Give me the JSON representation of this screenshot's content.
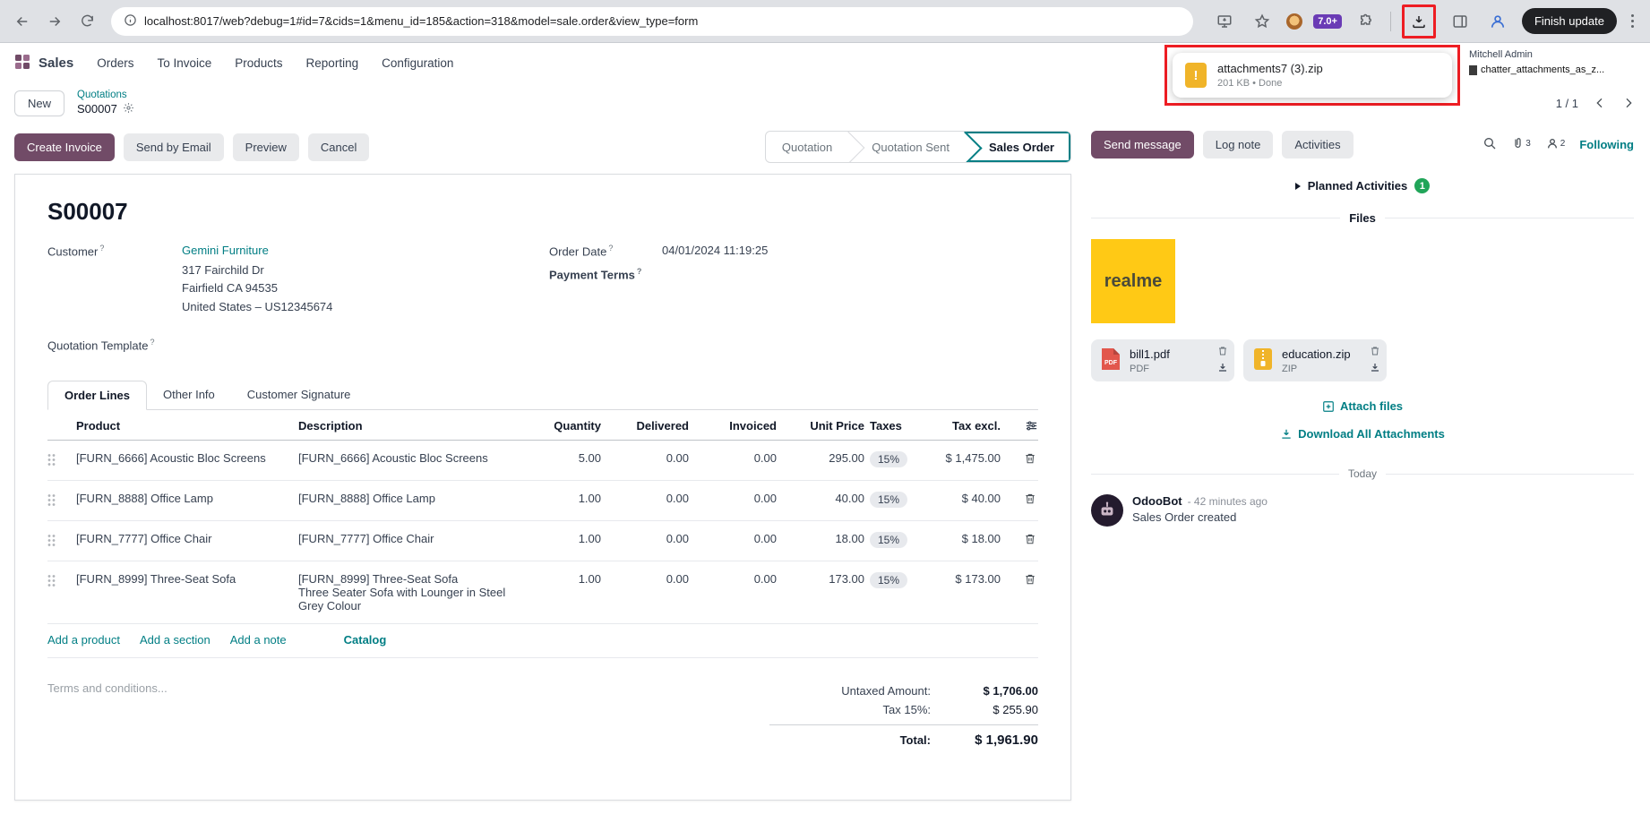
{
  "ui": {
    "help": "?"
  },
  "browser": {
    "url": "localhost:8017/web?debug=1#id=7&cids=1&menu_id=185&action=318&model=sale.order&view_type=form",
    "extension_badge": "7.0+",
    "finish_update_label": "Finish update",
    "download_popup": {
      "filename": "attachments7 (3).zip",
      "meta": "201 KB • Done",
      "warn_glyph": "!"
    }
  },
  "systray": {
    "user": "Mitchell Admin",
    "attachment_file": "chatter_attachments_as_z..."
  },
  "nav": {
    "app": "Sales",
    "items": [
      "Orders",
      "To Invoice",
      "Products",
      "Reporting",
      "Configuration"
    ]
  },
  "breadcrumb": {
    "new_label": "New",
    "parent": "Quotations",
    "current": "S00007",
    "pager": "1 / 1"
  },
  "form": {
    "buttons": [
      "Create Invoice",
      "Send by Email",
      "Preview",
      "Cancel"
    ],
    "statusbar": [
      "Quotation",
      "Quotation Sent",
      "Sales Order"
    ],
    "title": "S00007",
    "fields": {
      "customer_label": "Customer",
      "customer": "Gemini Furniture",
      "address": [
        "317 Fairchild Dr",
        "Fairfield CA 94535",
        "United States – US12345674"
      ],
      "quotation_template_label": "Quotation Template",
      "order_date_label": "Order Date",
      "order_date": "04/01/2024 11:19:25",
      "payment_terms_label": "Payment Terms"
    },
    "tabs": [
      "Order Lines",
      "Other Info",
      "Customer Signature"
    ],
    "table": {
      "headers": [
        "Product",
        "Description",
        "Quantity",
        "Delivered",
        "Invoiced",
        "Unit Price",
        "Taxes",
        "Tax excl."
      ],
      "rows": [
        {
          "product": "[FURN_6666] Acoustic Bloc Screens",
          "description": [
            "[FURN_6666] Acoustic Bloc Screens"
          ],
          "quantity": "5.00",
          "delivered": "0.00",
          "invoiced": "0.00",
          "unit_price": "295.00",
          "taxes": "15%",
          "subtotal": "$ 1,475.00",
          "highlight": false
        },
        {
          "product": "[FURN_8888] Office Lamp",
          "description": [
            "[FURN_8888] Office Lamp"
          ],
          "quantity": "1.00",
          "delivered": "0.00",
          "invoiced": "0.00",
          "unit_price": "40.00",
          "taxes": "15%",
          "subtotal": "$ 40.00",
          "highlight": false
        },
        {
          "product": "[FURN_7777] Office Chair",
          "description": [
            "[FURN_7777] Office Chair"
          ],
          "quantity": "1.00",
          "delivered": "0.00",
          "invoiced": "0.00",
          "unit_price": "18.00",
          "taxes": "15%",
          "subtotal": "$ 18.00",
          "highlight": false
        },
        {
          "product": "[FURN_8999] Three-Seat Sofa",
          "description": [
            "[FURN_8999] Three-Seat Sofa",
            "Three Seater Sofa with Lounger in Steel Grey Colour"
          ],
          "quantity": "1.00",
          "delivered": "0.00",
          "invoiced": "0.00",
          "unit_price": "173.00",
          "taxes": "15%",
          "subtotal": "$ 173.00",
          "highlight": true
        }
      ],
      "footer_links": [
        "Add a product",
        "Add a section",
        "Add a note",
        "Catalog"
      ]
    },
    "terms_placeholder": "Terms and conditions...",
    "totals": {
      "untaxed_label": "Untaxed Amount:",
      "untaxed": "$ 1,706.00",
      "tax_label": "Tax 15%:",
      "tax": "$ 255.90",
      "total_label": "Total:",
      "total": "$ 1,961.90"
    }
  },
  "chatter": {
    "buttons": [
      "Send message",
      "Log note",
      "Activities"
    ],
    "attachments_count": "3",
    "followers_count": "2",
    "following_label": "Following",
    "planned_label": "Planned Activities",
    "planned_count": "1",
    "files_label": "Files",
    "image_label": "realme",
    "files": [
      {
        "name": "bill1.pdf",
        "type": "PDF"
      },
      {
        "name": "education.zip",
        "type": "ZIP"
      }
    ],
    "attach_label": "Attach files",
    "download_all_label": "Download All Attachments",
    "today_label": "Today",
    "message": {
      "author": "OdooBot",
      "time": "- 42 minutes ago",
      "body": "Sales Order created"
    }
  }
}
